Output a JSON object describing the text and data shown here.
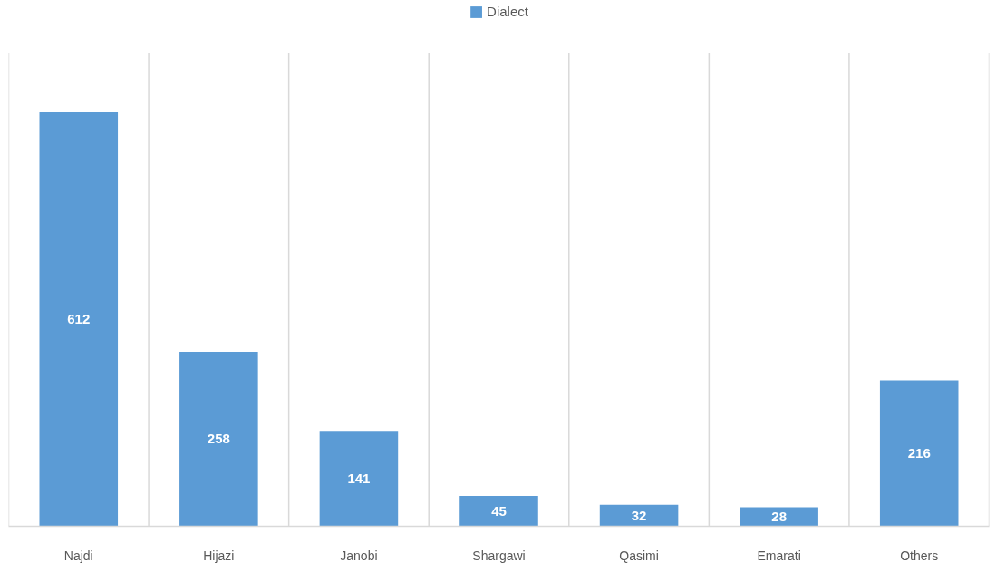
{
  "chart_data": {
    "type": "bar",
    "categories": [
      "Najdi",
      "Hijazi",
      "Janobi",
      "Shargawi",
      "Qasimi",
      "Emarati",
      "Others"
    ],
    "series": [
      {
        "name": "Dialect",
        "color": "#5b9bd5",
        "values": [
          612,
          258,
          141,
          45,
          32,
          28,
          216
        ]
      }
    ],
    "ylim": [
      0,
      700
    ],
    "data_labels": true,
    "grid": "x",
    "legend": "top",
    "tick_labels": "x"
  }
}
